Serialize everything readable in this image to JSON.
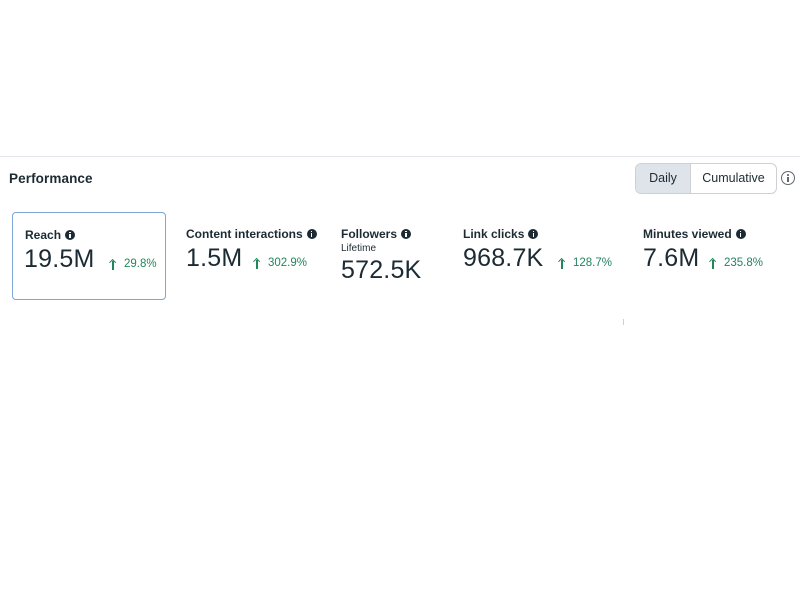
{
  "header": {
    "title": "Performance",
    "toggle": {
      "options": [
        "Daily",
        "Cumulative"
      ],
      "selected": "Daily"
    },
    "info_icon": "info-circle-icon"
  },
  "metrics": [
    {
      "label": "Reach",
      "value": "19.5M",
      "change": "29.8%",
      "direction": "up",
      "selected": true
    },
    {
      "label": "Content interactions",
      "value": "1.5M",
      "change": "302.9%",
      "direction": "up",
      "selected": false
    },
    {
      "label": "Followers",
      "sublabel": "Lifetime",
      "value": "572.5K",
      "selected": false
    },
    {
      "label": "Link clicks",
      "value": "968.7K",
      "change": "128.7%",
      "direction": "up",
      "selected": false
    },
    {
      "label": "Minutes viewed",
      "value": "7.6M",
      "change": "235.8%",
      "direction": "up",
      "selected": false
    }
  ],
  "colors": {
    "text": "#1c2b33",
    "positive": "#22855e",
    "selected_border": "#7ea6d8",
    "toggle_active_bg": "#dfe3ea"
  }
}
